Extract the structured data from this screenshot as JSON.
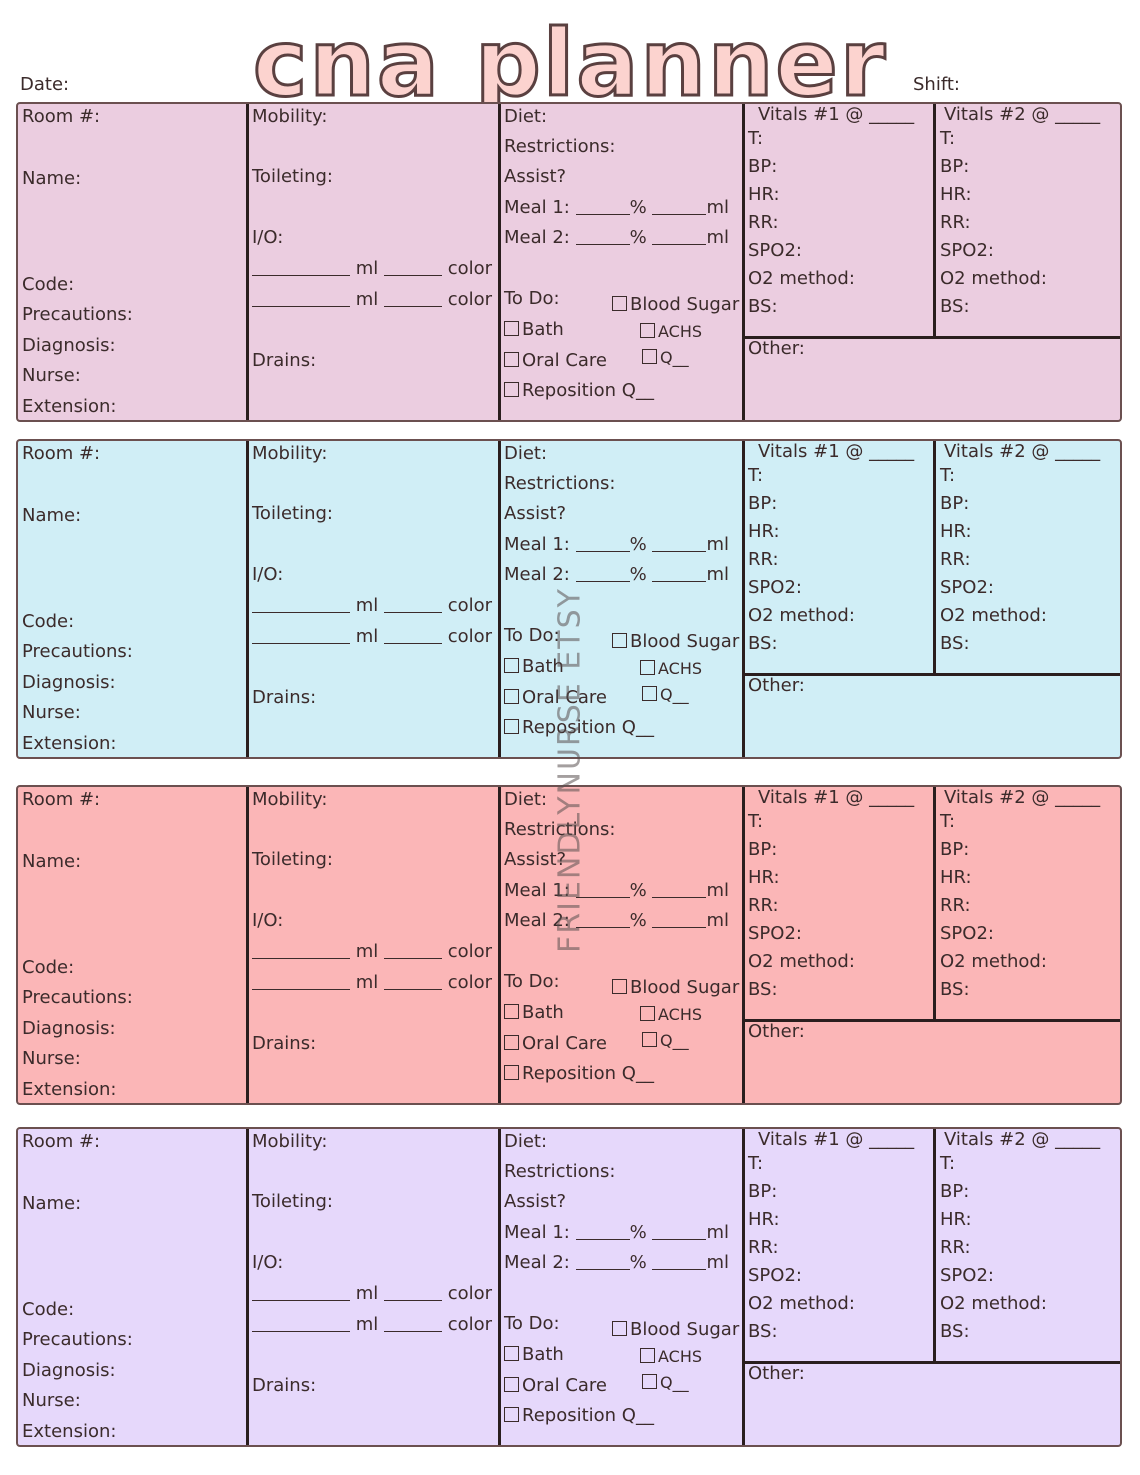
{
  "title": "cna planner",
  "header": {
    "date_label": "Date:",
    "shift_label": "Shift:"
  },
  "watermark": "FRIENDLYNURSE ETSY",
  "colors": {
    "card1": "#ebcde0",
    "card2": "#d0eef6",
    "card3": "#fbb6b7",
    "card4": "#e6d8fb",
    "title_fill": "#fcd3cf",
    "border": "#6b5050"
  },
  "labels": {
    "room": "Room #:",
    "name": "Name:",
    "code": "Code:",
    "precautions": "Precautions:",
    "diagnosis": "Diagnosis:",
    "nurse": "Nurse:",
    "extension": "Extension:",
    "mobility": "Mobility:",
    "toileting": "Toileting:",
    "io": "I/O:",
    "ml": "ml",
    "color": "color",
    "drains": "Drains:",
    "diet": "Diet:",
    "restrictions": "Restrictions:",
    "assist": "Assist?",
    "meal1": "Meal 1:",
    "meal2": "Meal 2:",
    "pct": "%",
    "todo": "To Do:",
    "blood_sugar": "Blood Sugar",
    "bath": "Bath",
    "achs": "ACHS",
    "oral_care": "Oral Care",
    "q": "Q__",
    "reposition": "Reposition Q__",
    "vitals1": "Vitals #1 @ _____",
    "vitals2": "Vitals #2 @ _____",
    "t": "T:",
    "bp": "BP:",
    "hr": "HR:",
    "rr": "RR:",
    "spo2": "SPO2:",
    "o2": "O2 method:",
    "bs": "BS:",
    "other": "Other:"
  }
}
